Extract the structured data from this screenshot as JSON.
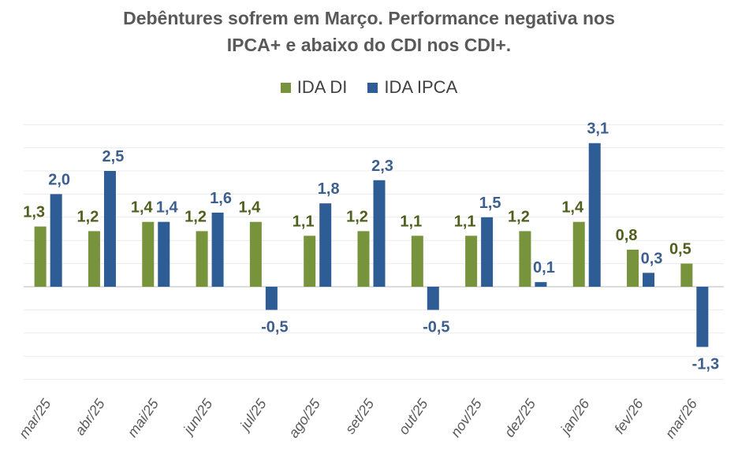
{
  "chart_data": {
    "type": "bar",
    "title": "Debêntures sofrem em Março. Performance negativa nos IPCA+ e abaixo do CDI nos CDI+.",
    "title_lines": [
      "Debêntures sofrem em Março. Performance negativa nos",
      "IPCA+ e abaixo do CDI nos CDI+."
    ],
    "xlabel": "",
    "ylabel": "",
    "ylim": [
      -2.0,
      3.5
    ],
    "grid": true,
    "grid_step": 0.5,
    "legend_position": "top",
    "categories": [
      "mar/25",
      "abr/25",
      "mai/25",
      "jun/25",
      "jul/25",
      "ago/25",
      "set/25",
      "out/25",
      "nov/25",
      "dez/25",
      "jan/26",
      "fev/26",
      "mar/26"
    ],
    "series": [
      {
        "name": "IDA DI",
        "color": "#77933c",
        "label_color": "#4f5f1e",
        "values": [
          1.3,
          1.2,
          1.4,
          1.2,
          1.4,
          1.1,
          1.2,
          1.1,
          1.1,
          1.2,
          1.4,
          0.8,
          0.5
        ],
        "labels": [
          "1,3",
          "1,2",
          "1,4",
          "1,2",
          "1,4",
          "1,1",
          "1,2",
          "1,1",
          "1,1",
          "1,2",
          "1,4",
          "0,8",
          "0,5"
        ]
      },
      {
        "name": "IDA IPCA",
        "color": "#2e5c94",
        "label_color": "#3d5f8f",
        "values": [
          2.0,
          2.5,
          1.4,
          1.6,
          -0.5,
          1.8,
          2.3,
          -0.5,
          1.5,
          0.1,
          3.1,
          0.3,
          -1.3
        ],
        "labels": [
          "2,0",
          "2,5",
          "1,4",
          "1,6",
          "-0,5",
          "1,8",
          "2,3",
          "-0,5",
          "1,5",
          "0,1",
          "3,1",
          "0,3",
          "-1,3"
        ]
      }
    ]
  }
}
